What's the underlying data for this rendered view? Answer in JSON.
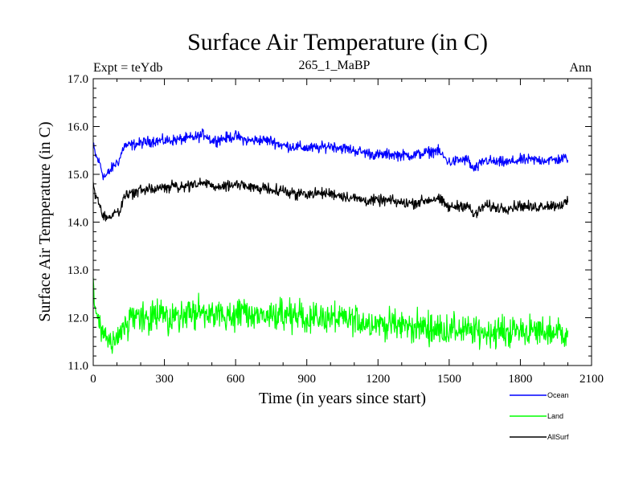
{
  "chart_data": {
    "type": "line",
    "title": "Surface Air Temperature (in C)",
    "subtitle": "265_1_MaBP",
    "left_note": "Expt = teYdb",
    "right_note": "Ann",
    "xlabel": "Time (in years since start)",
    "ylabel": "Surface Air Temperature (in C)",
    "xlim": [
      0,
      2100
    ],
    "ylim": [
      11.0,
      17.0
    ],
    "xticks": [
      0,
      300,
      600,
      900,
      1200,
      1500,
      1800,
      2100
    ],
    "xtick_labels": [
      "0",
      "300",
      "600",
      "900",
      "1200",
      "1500",
      "1800",
      "2100"
    ],
    "yticks": [
      11.0,
      12.0,
      13.0,
      14.0,
      15.0,
      16.0,
      17.0
    ],
    "ytick_labels": [
      "11.0",
      "12.0",
      "13.0",
      "14.0",
      "15.0",
      "16.0",
      "17.0"
    ],
    "legend_position": "bottom-right, below plot",
    "series": [
      {
        "name": "Ocean",
        "color": "#0000ff",
        "noise": 0.07,
        "x": [
          0,
          10,
          20,
          30,
          40,
          50,
          60,
          75,
          90,
          110,
          130,
          150,
          200,
          250,
          300,
          350,
          400,
          450,
          470,
          500,
          550,
          600,
          650,
          700,
          750,
          800,
          850,
          900,
          950,
          1000,
          1050,
          1100,
          1150,
          1200,
          1250,
          1300,
          1350,
          1400,
          1450,
          1480,
          1500,
          1550,
          1580,
          1600,
          1620,
          1650,
          1700,
          1750,
          1800,
          1850,
          1900,
          1950,
          2000
        ],
        "y": [
          15.6,
          15.4,
          15.3,
          15.2,
          15.0,
          14.95,
          15.0,
          15.1,
          15.2,
          15.3,
          15.6,
          15.6,
          15.65,
          15.7,
          15.7,
          15.72,
          15.75,
          15.8,
          15.85,
          15.7,
          15.75,
          15.8,
          15.7,
          15.72,
          15.7,
          15.6,
          15.58,
          15.55,
          15.55,
          15.6,
          15.55,
          15.5,
          15.45,
          15.4,
          15.42,
          15.4,
          15.4,
          15.45,
          15.5,
          15.35,
          15.25,
          15.3,
          15.3,
          15.1,
          15.15,
          15.3,
          15.25,
          15.25,
          15.3,
          15.3,
          15.3,
          15.3,
          15.35
        ]
      },
      {
        "name": "Land",
        "color": "#00ff00",
        "noise": 0.2,
        "x": [
          0,
          10,
          20,
          40,
          60,
          80,
          100,
          130,
          150,
          200,
          250,
          300,
          350,
          400,
          450,
          500,
          550,
          600,
          650,
          700,
          750,
          800,
          850,
          900,
          950,
          1000,
          1050,
          1100,
          1150,
          1200,
          1250,
          1300,
          1350,
          1400,
          1450,
          1500,
          1550,
          1600,
          1650,
          1700,
          1750,
          1800,
          1850,
          1900,
          1950,
          2000
        ],
        "y": [
          12.7,
          12.1,
          11.9,
          11.6,
          11.5,
          11.45,
          11.5,
          11.8,
          11.95,
          12.0,
          12.0,
          12.05,
          12.05,
          12.05,
          12.1,
          12.05,
          12.05,
          12.1,
          12.05,
          12.05,
          12.05,
          12.0,
          12.05,
          12.0,
          12.0,
          12.0,
          11.95,
          11.95,
          11.9,
          11.9,
          11.85,
          11.85,
          11.8,
          11.8,
          11.75,
          11.75,
          11.75,
          11.7,
          11.7,
          11.7,
          11.7,
          11.75,
          11.7,
          11.7,
          11.7,
          11.7
        ]
      },
      {
        "name": "AllSurf",
        "color": "#000000",
        "noise": 0.07,
        "x": [
          0,
          10,
          20,
          30,
          40,
          50,
          60,
          75,
          90,
          110,
          130,
          150,
          200,
          250,
          300,
          350,
          400,
          450,
          470,
          500,
          550,
          600,
          650,
          700,
          750,
          800,
          850,
          900,
          950,
          1000,
          1050,
          1100,
          1150,
          1200,
          1250,
          1300,
          1350,
          1400,
          1450,
          1480,
          1500,
          1550,
          1580,
          1600,
          1620,
          1650,
          1700,
          1750,
          1800,
          1850,
          1900,
          1950,
          2000
        ],
        "y": [
          14.8,
          14.55,
          14.45,
          14.3,
          14.15,
          14.1,
          14.1,
          14.1,
          14.2,
          14.25,
          14.5,
          14.6,
          14.65,
          14.7,
          14.72,
          14.75,
          14.75,
          14.8,
          14.85,
          14.72,
          14.75,
          14.8,
          14.72,
          14.72,
          14.7,
          14.65,
          14.6,
          14.6,
          14.6,
          14.6,
          14.55,
          14.5,
          14.45,
          14.45,
          14.45,
          14.4,
          14.4,
          14.45,
          14.5,
          14.38,
          14.3,
          14.35,
          14.35,
          14.15,
          14.2,
          14.35,
          14.3,
          14.3,
          14.35,
          14.3,
          14.35,
          14.35,
          14.4
        ]
      }
    ]
  }
}
